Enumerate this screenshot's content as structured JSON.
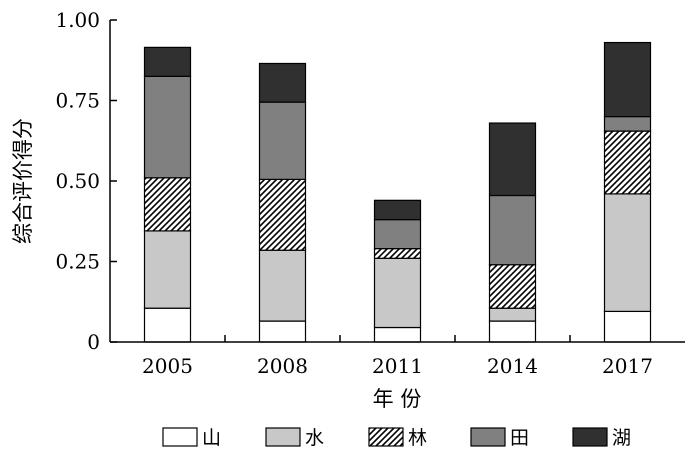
{
  "chart_data": {
    "type": "bar",
    "stacked": true,
    "categories": [
      "2005",
      "2008",
      "2011",
      "2014",
      "2017"
    ],
    "series": [
      {
        "name": "山",
        "values": [
          0.105,
          0.065,
          0.045,
          0.065,
          0.095
        ],
        "fill": "#ffffff",
        "pattern": "none"
      },
      {
        "name": "水",
        "values": [
          0.24,
          0.22,
          0.215,
          0.04,
          0.365
        ],
        "fill": "#c8c8c8",
        "pattern": "none"
      },
      {
        "name": "林",
        "values": [
          0.165,
          0.22,
          0.03,
          0.135,
          0.195
        ],
        "fill": "#ffffff",
        "pattern": "diagonal-hatch"
      },
      {
        "name": "田",
        "values": [
          0.315,
          0.24,
          0.09,
          0.215,
          0.045
        ],
        "fill": "#808080",
        "pattern": "none"
      },
      {
        "name": "湖",
        "values": [
          0.09,
          0.12,
          0.06,
          0.225,
          0.23
        ],
        "fill": "#303030",
        "pattern": "none"
      }
    ],
    "xlabel": "年 份",
    "ylabel": "综合评价得分",
    "ylim": [
      0,
      1.0
    ],
    "yticks": [
      0,
      0.25,
      0.5,
      0.75,
      1.0
    ],
    "ytick_labels": [
      "0",
      "0.25",
      "0.50",
      "0.75",
      "1.00"
    ],
    "grid": false,
    "legend_position": "bottom"
  }
}
